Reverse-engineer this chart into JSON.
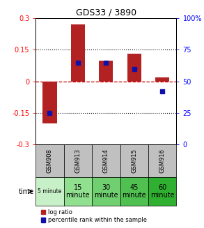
{
  "title": "GDS33 / 3890",
  "samples": [
    "GSM908",
    "GSM913",
    "GSM914",
    "GSM915",
    "GSM916"
  ],
  "time_labels_row1": [
    "5 minute",
    "15",
    "30",
    "45",
    "60"
  ],
  "time_labels_row2": [
    "",
    "minute",
    "minute",
    "minute",
    "minute"
  ],
  "log_ratios": [
    -0.2,
    0.27,
    0.1,
    0.13,
    0.02
  ],
  "percentile_ranks": [
    25,
    65,
    65,
    60,
    42
  ],
  "ylim_left": [
    -0.3,
    0.3
  ],
  "ylim_right": [
    0,
    100
  ],
  "yticks_left": [
    -0.3,
    -0.15,
    0,
    0.15,
    0.3
  ],
  "yticks_right": [
    0,
    25,
    50,
    75,
    100
  ],
  "bar_color": "#b22222",
  "dot_color": "#1010aa",
  "bg_color": "#ffffff",
  "zero_line_color": "#cc0000",
  "dotted_color": "#000000",
  "table_header_bg": "#c0c0c0",
  "time_colors": [
    "#c8f0c8",
    "#90e090",
    "#70d070",
    "#50c050",
    "#30b030"
  ],
  "bar_width": 0.5
}
